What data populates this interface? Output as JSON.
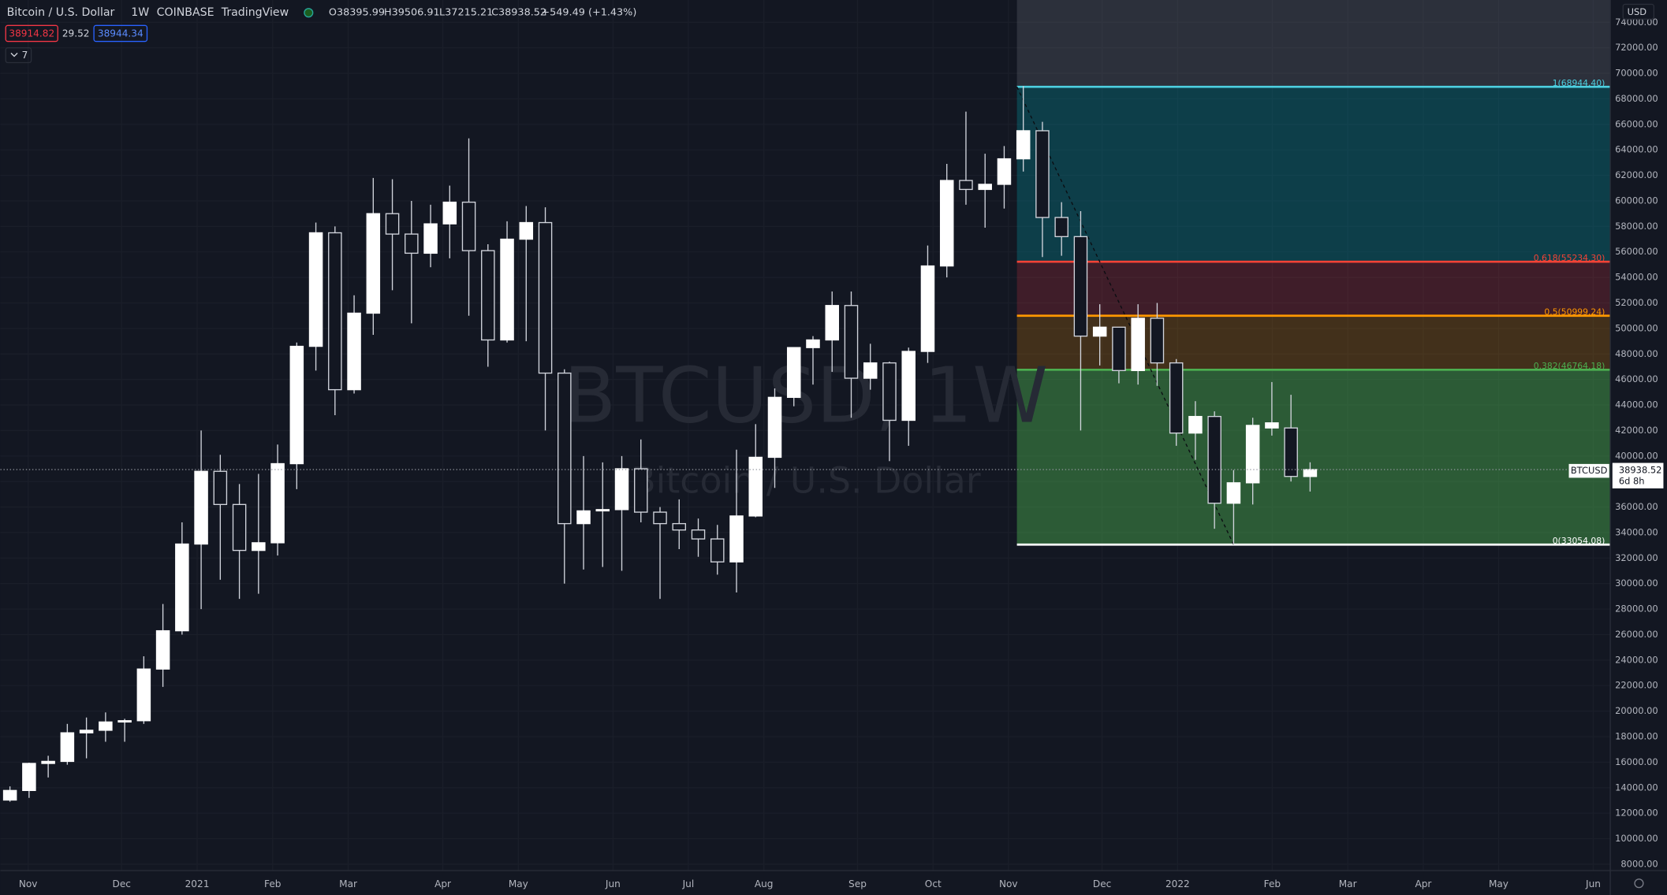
{
  "header": {
    "symbol": "Bitcoin / U.S. Dollar",
    "interval": "1W",
    "exchange": "COINBASE",
    "source": "TradingView",
    "open": "O38395.99",
    "high": "H39506.91",
    "low": "L37215.21",
    "close": "C38938.52",
    "change": "+549.49 (+1.43%)",
    "bid": "38914.82",
    "spread": "29.52",
    "ask": "38944.34",
    "indicators": "7",
    "currency": "USD"
  },
  "watermark": {
    "title": "BTCUSD, 1W",
    "subtitle": "Bitcoin / U.S. Dollar"
  },
  "price_tag": {
    "symbol": "BTCUSD",
    "price": 38938.52,
    "countdown": "6d 8h"
  },
  "chart_data": {
    "type": "candlestick",
    "grid": true,
    "up_color": "#ffffff",
    "down_color": "#131722",
    "wick_color": "#d1d4dc",
    "ylim": [
      7500,
      75750
    ],
    "yticks": [
      {
        "value": 8000,
        "label": "8000.00"
      },
      {
        "value": 10000,
        "label": "10000.00"
      },
      {
        "value": 12000,
        "label": "12000.00"
      },
      {
        "value": 14000,
        "label": "14000.00"
      },
      {
        "value": 16000,
        "label": "16000.00"
      },
      {
        "value": 18000,
        "label": "18000.00"
      },
      {
        "value": 20000,
        "label": "20000.00"
      },
      {
        "value": 22000,
        "label": "22000.00"
      },
      {
        "value": 24000,
        "label": "24000.00"
      },
      {
        "value": 26000,
        "label": "26000.00"
      },
      {
        "value": 28000,
        "label": "28000.00"
      },
      {
        "value": 30000,
        "label": "30000.00"
      },
      {
        "value": 32000,
        "label": "32000.00"
      },
      {
        "value": 34000,
        "label": "34000.00"
      },
      {
        "value": 36000,
        "label": "36000.00"
      },
      {
        "value": 38000,
        "label": "38000.00"
      },
      {
        "value": 40000,
        "label": "40000.00"
      },
      {
        "value": 42000,
        "label": "42000.00"
      },
      {
        "value": 44000,
        "label": "44000.00"
      },
      {
        "value": 46000,
        "label": "46000.00"
      },
      {
        "value": 48000,
        "label": "48000.00"
      },
      {
        "value": 50000,
        "label": "50000.00"
      },
      {
        "value": 52000,
        "label": "52000.00"
      },
      {
        "value": 54000,
        "label": "54000.00"
      },
      {
        "value": 56000,
        "label": "56000.00"
      },
      {
        "value": 58000,
        "label": "58000.00"
      },
      {
        "value": 60000,
        "label": "60000.00"
      },
      {
        "value": 62000,
        "label": "62000.00"
      },
      {
        "value": 64000,
        "label": "64000.00"
      },
      {
        "value": 66000,
        "label": "66000.00"
      },
      {
        "value": 68000,
        "label": "68000.00"
      },
      {
        "value": 70000,
        "label": "70000.00"
      },
      {
        "value": 72000,
        "label": "72000.00"
      },
      {
        "value": 74000,
        "label": "74000.00"
      }
    ],
    "xlim": [
      -0.5,
      83.7
    ],
    "xticks": [
      {
        "value": 0.95,
        "label": "Nov"
      },
      {
        "value": 5.84,
        "label": "Dec"
      },
      {
        "value": 9.79,
        "label": "2021"
      },
      {
        "value": 13.74,
        "label": "Feb"
      },
      {
        "value": 17.69,
        "label": "Mar"
      },
      {
        "value": 22.64,
        "label": "Apr"
      },
      {
        "value": 26.59,
        "label": "May"
      },
      {
        "value": 31.54,
        "label": "Jun"
      },
      {
        "value": 35.48,
        "label": "Jul"
      },
      {
        "value": 39.43,
        "label": "Aug"
      },
      {
        "value": 44.33,
        "label": "Sep"
      },
      {
        "value": 48.28,
        "label": "Oct"
      },
      {
        "value": 52.22,
        "label": "Nov"
      },
      {
        "value": 57.12,
        "label": "Dec"
      },
      {
        "value": 61.07,
        "label": "2022"
      },
      {
        "value": 66.02,
        "label": "Feb"
      },
      {
        "value": 69.97,
        "label": "Mar"
      },
      {
        "value": 73.92,
        "label": "Apr"
      },
      {
        "value": 77.86,
        "label": "May"
      },
      {
        "value": 82.81,
        "label": "Jun"
      }
    ],
    "open": [
      13030,
      13780,
      15900,
      16060,
      18300,
      18500,
      19150,
      19250,
      23300,
      26300,
      33100,
      38800,
      36200,
      32600,
      33200,
      39400,
      48600,
      57500,
      45200,
      51200,
      59000,
      57400,
      55900,
      58200,
      59900,
      56100,
      49100,
      57000,
      58300,
      46500,
      34700,
      35700,
      35800,
      39000,
      35600,
      34700,
      34200,
      33500,
      31700,
      35300,
      39900,
      44600,
      48500,
      49100,
      51800,
      46100,
      47300,
      42800,
      48200,
      54900,
      61600,
      60900,
      61300,
      63300,
      65500,
      58700,
      57200,
      49400,
      50100,
      46700,
      50800,
      47300,
      41800,
      43100,
      36300,
      37900,
      42200,
      42200,
      38395.99
    ],
    "high": [
      14100,
      15960,
      16500,
      19000,
      19500,
      19900,
      19400,
      24300,
      28400,
      34800,
      42000,
      40100,
      37800,
      38600,
      40900,
      48900,
      58300,
      58000,
      52600,
      61800,
      61700,
      60000,
      59700,
      61200,
      64900,
      56600,
      58400,
      59600,
      59500,
      46800,
      40000,
      39500,
      40000,
      41300,
      36000,
      36600,
      35100,
      34600,
      40500,
      42500,
      45300,
      48100,
      49400,
      52900,
      52900,
      48800,
      47400,
      48500,
      56500,
      62900,
      67000,
      63700,
      64300,
      69000,
      66200,
      59900,
      59200,
      51900,
      50100,
      51900,
      52000,
      47600,
      44300,
      43500,
      38900,
      43000,
      45800,
      44800,
      39506.91
    ],
    "low": [
      12900,
      13200,
      14800,
      15800,
      16300,
      17600,
      17600,
      19000,
      21900,
      26000,
      28000,
      30300,
      28800,
      29200,
      32200,
      37400,
      46700,
      43200,
      44900,
      49500,
      53000,
      50400,
      54800,
      55500,
      51000,
      47000,
      48900,
      49000,
      42000,
      30000,
      31100,
      31300,
      31000,
      34800,
      28800,
      32700,
      32100,
      30700,
      29300,
      35200,
      37500,
      43900,
      45600,
      46600,
      43000,
      45200,
      39600,
      40800,
      47300,
      54000,
      59700,
      57900,
      59400,
      62300,
      55600,
      55700,
      42000,
      47100,
      45700,
      45600,
      45500,
      40800,
      39700,
      34300,
      33050,
      36200,
      41600,
      38000,
      37215.21
    ],
    "close": [
      13780,
      15900,
      16060,
      18300,
      18500,
      19150,
      19250,
      23300,
      26300,
      33100,
      38800,
      36200,
      32600,
      33200,
      39400,
      48600,
      57500,
      45200,
      51200,
      59000,
      57400,
      55900,
      58200,
      59900,
      56100,
      49100,
      57000,
      58300,
      46500,
      34700,
      35700,
      35800,
      39000,
      35600,
      34700,
      34200,
      33500,
      31700,
      35300,
      39900,
      44600,
      48500,
      49100,
      51800,
      46100,
      47300,
      42800,
      48200,
      54900,
      61600,
      60900,
      61300,
      63300,
      65500,
      58700,
      57200,
      49400,
      50100,
      46700,
      50800,
      47300,
      41800,
      43100,
      36300,
      37900,
      42400,
      42600,
      38400,
      38938.52
    ],
    "fib_levels": [
      {
        "label": "1(68944.40)",
        "value": 68944.4,
        "color": "#4dd0e1"
      },
      {
        "label": "0.618(55234.30)",
        "value": 55234.3,
        "color": "#f44336"
      },
      {
        "label": "0.5(50999.24)",
        "value": 50999.24,
        "color": "#ff9800"
      },
      {
        "label": "0.382(46764.18)",
        "value": 46764.18,
        "color": "#4caf50"
      },
      {
        "label": "0(33054.08)",
        "value": 33054.08,
        "color": "#ffffff"
      }
    ],
    "fib_bands": [
      "rgba(120,123,134,0.25)",
      "rgba(0,151,167,0.3)",
      "rgba(242,54,69,0.2)",
      "rgba(255,152,0,0.2)",
      "rgba(76,175,80,0.45)"
    ]
  }
}
